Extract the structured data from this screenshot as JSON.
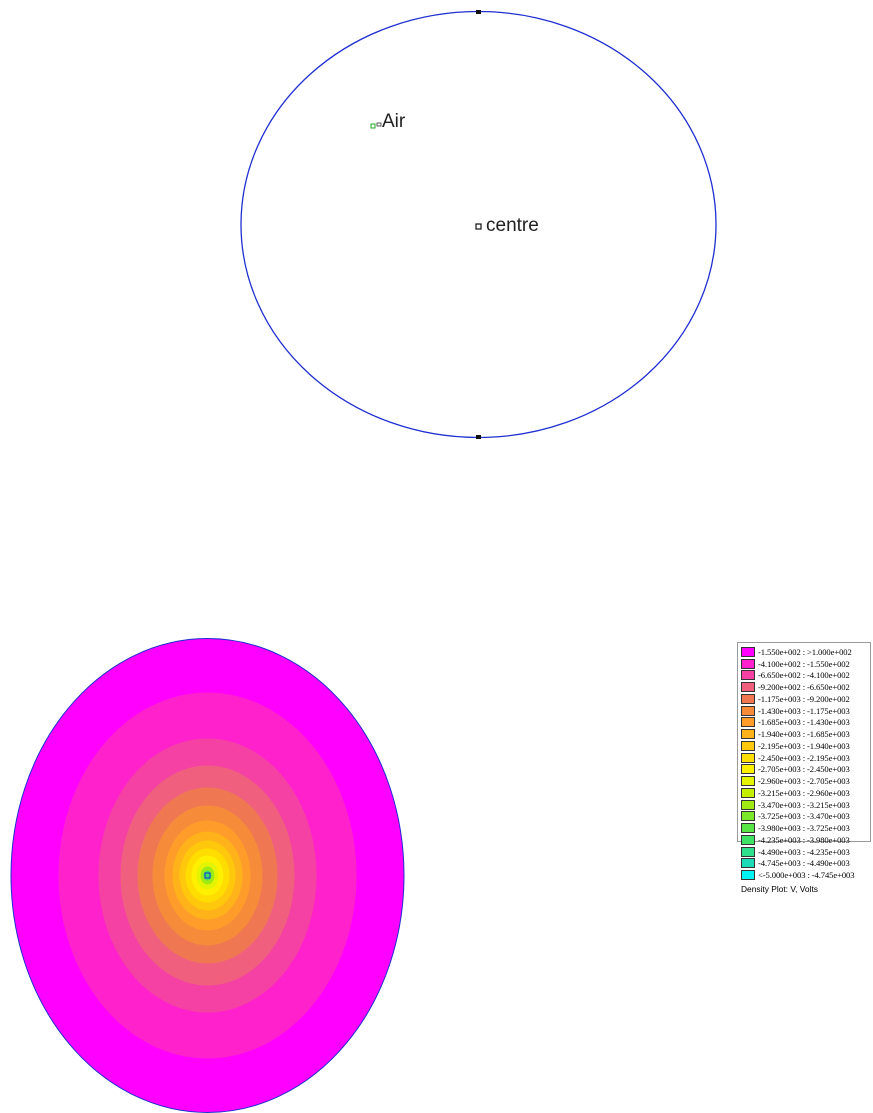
{
  "geometry_view": {
    "labels": {
      "air": "Air",
      "centre": "centre"
    },
    "boundary_color": "#1f2fd0"
  },
  "density_plot": {
    "title": "Density Plot: V, Volts",
    "legend": [
      {
        "range": "-1.550e+002 : >1.000e+002",
        "color": "#ff00ff"
      },
      {
        "range": "-4.100e+002 : -1.550e+002",
        "color": "#ff22cc"
      },
      {
        "range": "-6.650e+002 : -4.100e+002",
        "color": "#f540a4"
      },
      {
        "range": "-9.200e+002 : -6.650e+002",
        "color": "#f0607e"
      },
      {
        "range": "-1.175e+003 : -9.200e+002",
        "color": "#ef7852"
      },
      {
        "range": "-1.430e+003 : -1.175e+003",
        "color": "#f68c3a"
      },
      {
        "range": "-1.685e+003 : -1.430e+003",
        "color": "#ff9c2a"
      },
      {
        "range": "-1.940e+003 : -1.685e+003",
        "color": "#ffb21a"
      },
      {
        "range": "-2.195e+003 : -1.940e+003",
        "color": "#ffc80c"
      },
      {
        "range": "-2.450e+003 : -2.195e+003",
        "color": "#ffdd00"
      },
      {
        "range": "-2.705e+003 : -2.450e+003",
        "color": "#fff000"
      },
      {
        "range": "-2.960e+003 : -2.705e+003",
        "color": "#e4f400"
      },
      {
        "range": "-3.215e+003 : -2.960e+003",
        "color": "#c4ef00"
      },
      {
        "range": "-3.470e+003 : -3.215e+003",
        "color": "#a0ea14"
      },
      {
        "range": "-3.725e+003 : -3.470e+003",
        "color": "#7be82c"
      },
      {
        "range": "-3.980e+003 : -3.725e+003",
        "color": "#58e646"
      },
      {
        "range": "-4.235e+003 : -3.980e+003",
        "color": "#3ee266"
      },
      {
        "range": "-4.490e+003 : -4.235e+003",
        "color": "#2ee08c"
      },
      {
        "range": "-4.745e+003 : -4.490e+003",
        "color": "#1ed9b6"
      },
      {
        "range": "<-5.000e+003 : -4.745e+003",
        "color": "#00f2f2"
      }
    ]
  }
}
